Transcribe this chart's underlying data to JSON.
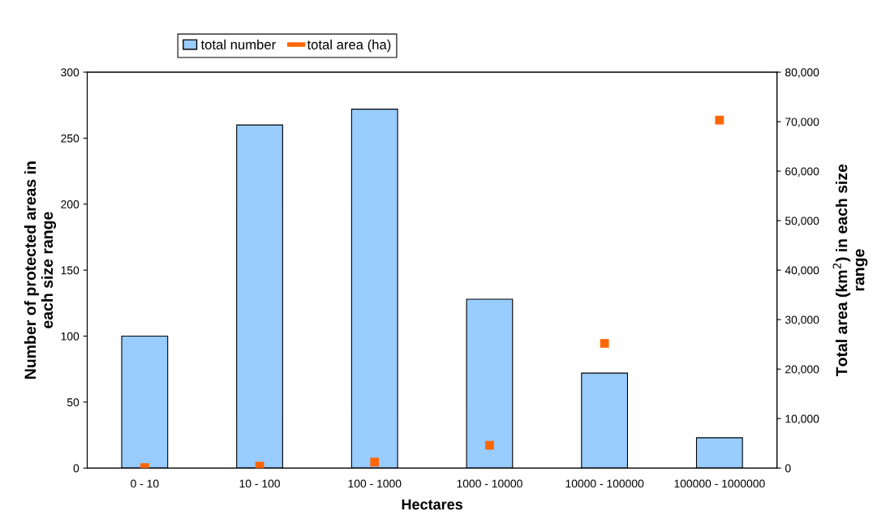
{
  "chart_data": {
    "type": "bar",
    "categories": [
      "0 - 10",
      "10 - 100",
      "100 - 1000",
      "1000 - 10000",
      "10000 - 100000",
      "100000 - 1000000"
    ],
    "series": [
      {
        "name": "total number",
        "color": "#99ccff",
        "type": "bar",
        "values": [
          100,
          260,
          272,
          128,
          72,
          23
        ]
      },
      {
        "name": "total area (ha)",
        "color": "#ff6600",
        "type": "scatter",
        "axis": "y2",
        "values": [
          100,
          400,
          1200,
          4600,
          25200,
          70300
        ]
      }
    ],
    "xlabel": "Hectares",
    "ylabel": "Number of protected areas in\neach size range",
    "y2label": "Total area (km$^{2}$) in each size\nrange",
    "ylim": [
      0,
      300
    ],
    "yticks": [
      0,
      50,
      100,
      150,
      200,
      250,
      300
    ],
    "y2lim": [
      0,
      80000
    ],
    "y2ticks": [
      0,
      {
        "value": 10000,
        "label": "10,000"
      },
      {
        "value": 20000,
        "label": "20,000"
      },
      {
        "value": 30000,
        "label": "30,000"
      },
      {
        "value": 40000,
        "label": "40,000"
      },
      {
        "value": 50000,
        "label": "50,000"
      },
      {
        "value": 60000,
        "label": "60,000"
      },
      {
        "value": 70000,
        "label": "70,000"
      },
      {
        "value": 80000,
        "label": "80,000"
      }
    ],
    "legend": "top",
    "grid": false
  }
}
